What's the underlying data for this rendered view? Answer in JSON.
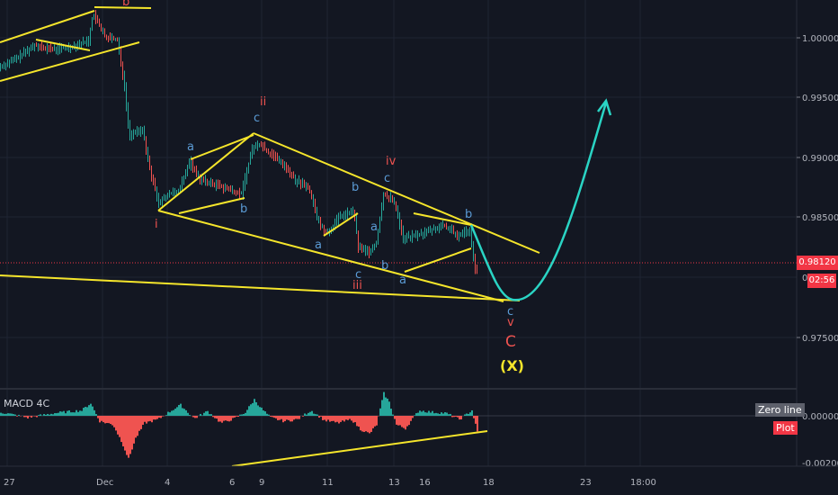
{
  "price_axis": {
    "ticks": [
      "1.00000",
      "0.99500",
      "0.99000",
      "0.98500",
      "0.97500"
    ],
    "current_price": "0.98120",
    "countdown": "02:56",
    "partial_label": "0"
  },
  "macd_axis": {
    "ticks": [
      "0.00000",
      "-0.00200"
    ]
  },
  "time_axis": {
    "ticks": [
      "27",
      "Dec",
      "4",
      "6",
      "9",
      "11",
      "13",
      "16",
      "18",
      "23",
      "18:00"
    ]
  },
  "indicator": {
    "title": "MACD 4C",
    "zero_line_label": "Zero line",
    "plot_label": "Plot"
  },
  "wave_labels": {
    "top_b": "b",
    "ii": "ii",
    "c_top": "c",
    "a1": "a",
    "b1": "b",
    "i": "i",
    "a2": "a",
    "b2": "b",
    "c2": "c",
    "iii": "iii",
    "iv": "iv",
    "c_iv": "c",
    "a3": "a",
    "b3": "b",
    "a4": "a",
    "b_right": "b",
    "c_end": "c",
    "v": "v",
    "C": "C",
    "X": "(X)"
  },
  "colors": {
    "background": "#131722",
    "up": "#26a69a",
    "down": "#ef5350",
    "trendline": "#f5e52b",
    "projection": "#2ad4c4",
    "price_tag": "#f23645",
    "wave_blue": "#5b9bd5",
    "wave_red": "#ef5350"
  }
}
